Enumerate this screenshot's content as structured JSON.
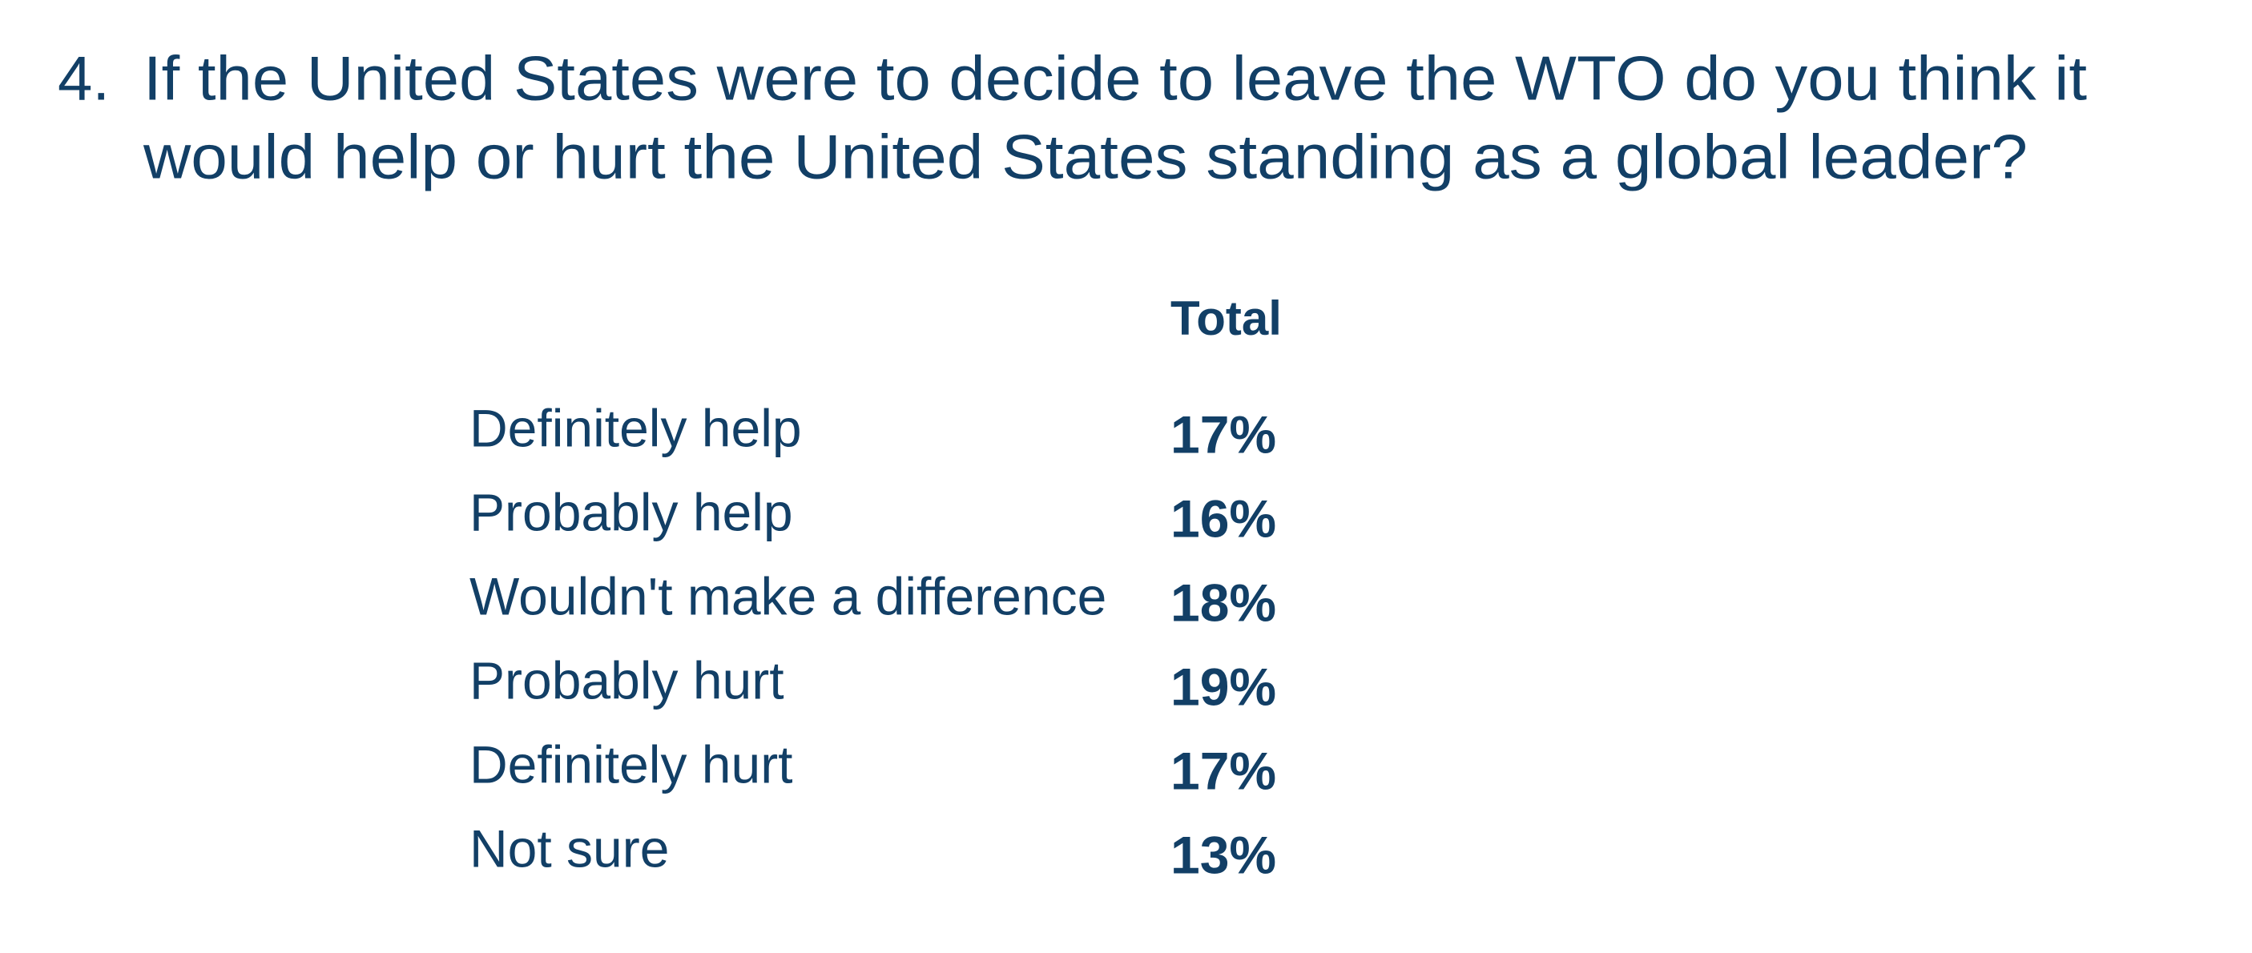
{
  "question": {
    "number": "4.",
    "lines": [
      "If the United States were to decide to leave the WTO do you think it",
      "would help or hurt the United States standing as a global leader?"
    ]
  },
  "table": {
    "header": "Total",
    "rows": [
      [
        "Definitely help",
        "17%"
      ],
      [
        "Probably help",
        "16%"
      ],
      [
        "Wouldn't make a difference",
        "18%"
      ],
      [
        "Probably hurt",
        "19%"
      ],
      [
        "Definitely hurt",
        "17%"
      ],
      [
        "Not sure",
        "13%"
      ]
    ]
  }
}
